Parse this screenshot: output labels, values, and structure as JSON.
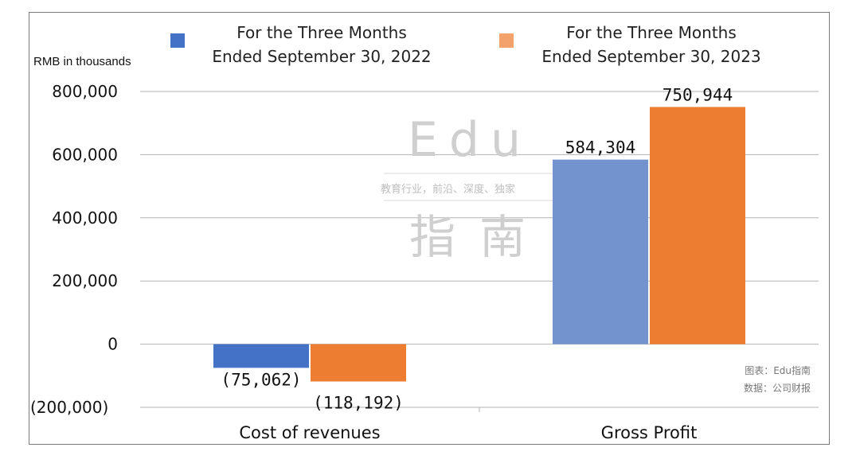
{
  "chart_data": {
    "type": "bar",
    "unit_label": "RMB in thousands",
    "categories": [
      "Cost of revenues",
      "Gross Profit"
    ],
    "series": [
      {
        "name": "For the Three Months Ended September 30, 2022",
        "legend_line1": "For the Three Months",
        "legend_line2": "Ended September 30, 2022",
        "values": [
          -75062,
          584304
        ],
        "labels": [
          "(75,062)",
          "584,304"
        ]
      },
      {
        "name": "For the Three Months Ended September 30, 2023",
        "legend_line1": "For the Three Months",
        "legend_line2": "Ended September 30, 2023",
        "values": [
          -118192,
          750944
        ],
        "labels": [
          "(118,192)",
          "750,944"
        ]
      }
    ],
    "ylim": [
      -200000,
      800000
    ],
    "yticks": [
      800000,
      600000,
      400000,
      200000,
      0,
      -200000
    ],
    "ytick_labels": [
      "800,000",
      "600,000",
      "400,000",
      "200,000",
      "0",
      "(200,000)"
    ],
    "grid": true,
    "legend_position": "top"
  },
  "colors": {
    "series_2022": "#4472c4",
    "series_2022_gross": "#7293ce",
    "series_2023": "#ed7d31",
    "legend_2022": "#4472c4",
    "legend_2023": "#f4a26b",
    "grid": "#b3b3b3"
  },
  "watermark": {
    "title": "Edu",
    "tagline": "教育行业，前沿、深度、独家",
    "chinese": "指南"
  },
  "credits": {
    "chart": "图表：Edu指南",
    "data": "数据：公司财报"
  }
}
